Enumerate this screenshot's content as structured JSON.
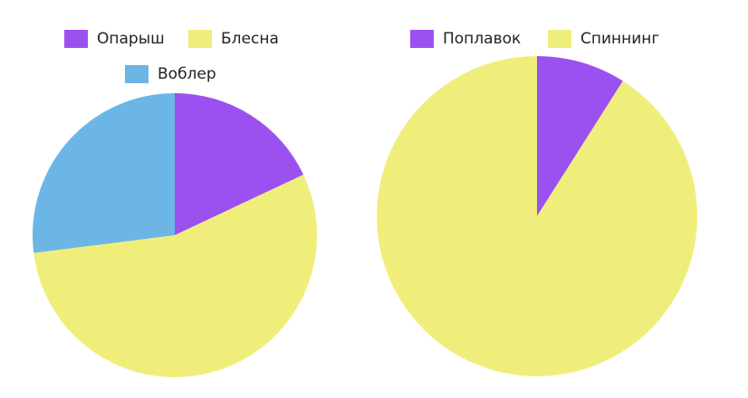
{
  "chart_data": [
    {
      "type": "pie",
      "title": "",
      "start_angle": "12 o'clock, clockwise",
      "legend_position": "top",
      "slices": [
        {
          "label": "Опарыш",
          "value": 18,
          "color": "#9b51ef"
        },
        {
          "label": "Блесна",
          "value": 55,
          "color": "#f0ee7b"
        },
        {
          "label": "Воблер",
          "value": 27,
          "color": "#6cb6e6"
        }
      ]
    },
    {
      "type": "pie",
      "title": "",
      "start_angle": "12 o'clock, clockwise",
      "legend_position": "top",
      "slices": [
        {
          "label": "Поплавок",
          "value": 9,
          "color": "#9b51ef"
        },
        {
          "label": "Спиннинг",
          "value": 91,
          "color": "#f0ee7b"
        }
      ]
    }
  ]
}
